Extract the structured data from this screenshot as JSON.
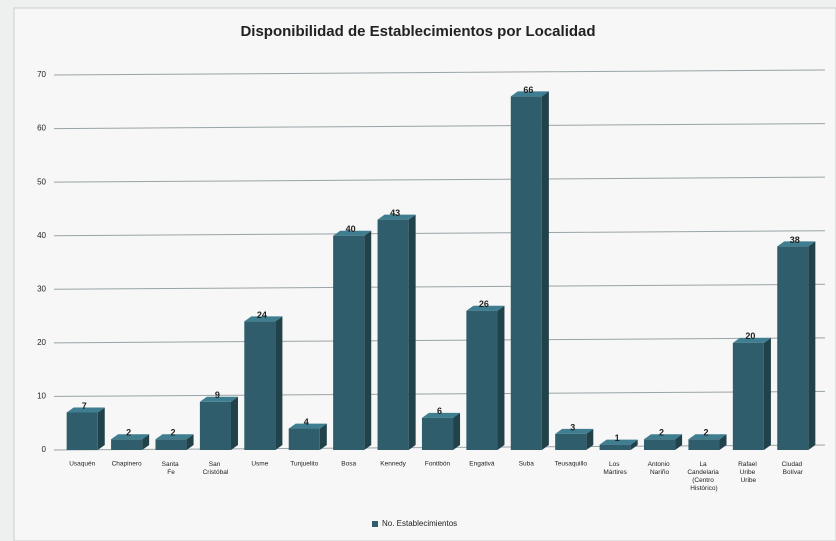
{
  "chart_data": {
    "type": "bar",
    "title": "Disponibilidad de Establecimientos por Localidad",
    "categories": [
      "Usaquén",
      "Chapinero",
      "Santa Fe",
      "San Cristóbal",
      "Usme",
      "Tunjuelito",
      "Bosa",
      "Kennedy",
      "Fontibón",
      "Engativá",
      "Suba",
      "Teusaquillo",
      "Los Mártires",
      "Antonio Nariño",
      "La Candelaria (Centro Histórico)",
      "Rafael Uribe Uribe",
      "Ciudad Bolívar"
    ],
    "series": [
      {
        "name": "No. Establecimientos",
        "color": "#2f5d6b",
        "values": [
          7,
          2,
          2,
          9,
          24,
          4,
          40,
          43,
          6,
          26,
          66,
          3,
          1,
          2,
          2,
          20,
          38
        ]
      }
    ],
    "ylim": [
      0,
      70
    ],
    "yticks": [
      0,
      10,
      20,
      30,
      40,
      50,
      60,
      70
    ],
    "grid": true,
    "legend": "bottom"
  }
}
